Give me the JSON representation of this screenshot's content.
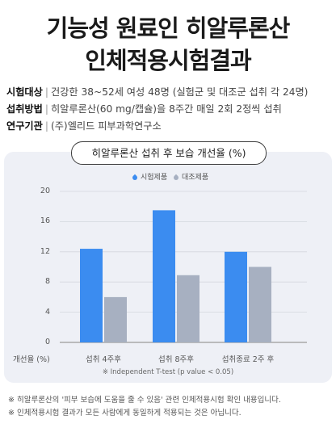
{
  "heading": {
    "line1": "기능성 원료인 히알루론산",
    "line2": "인체적용시험결과"
  },
  "info": [
    {
      "label": "시험대상",
      "value": "건강한 38~52세 여성 48명 (실험군 및 대조군 섭취 각 24명)"
    },
    {
      "label": "섭취방법",
      "value": "히알루론산(60 mg/캡슐)을 8주간 매일 2회 2정씩 섭취"
    },
    {
      "label": "연구기관",
      "value": "(주)엘리드 피부과학연구소"
    }
  ],
  "chart_data": {
    "type": "bar",
    "title": "히알루론산 섭취 후 보습 개선율 (%)",
    "xlabel": "개선율 (%)",
    "ylabel": "",
    "categories": [
      "섭취 4주후",
      "섭취 8주후",
      "섭취종료 2주 후"
    ],
    "series": [
      {
        "name": "시험제품",
        "color": "#3b8cf0",
        "values": [
          12.4,
          17.5,
          12.0
        ]
      },
      {
        "name": "대조제품",
        "color": "#a7b0c1",
        "values": [
          6.0,
          8.9,
          10.0
        ]
      }
    ],
    "ylim": [
      0,
      20
    ],
    "yticks": [
      0,
      4,
      8,
      12,
      16,
      20
    ],
    "grid": true,
    "legend": "top-center",
    "note": "※ Independent T-test (p value < 0.05)"
  },
  "footnotes": [
    "※ 히알루론산의 '피부 보습에 도움을 줄 수 있음' 관련 인체적용시험 확인 내용입니다.",
    "※ 인체적용시험 결과가 모든 사람에게 동일하게 적용되는 것은 아닙니다."
  ]
}
